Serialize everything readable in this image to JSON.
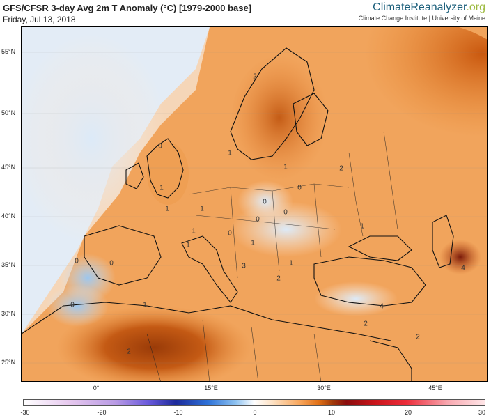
{
  "header": {
    "title": "GFS/CFSR 3-day Avg 2m T Anomaly (°C) [1979-2000 base]",
    "date": "Friday, Jul 13, 2018"
  },
  "brand": {
    "name_part1": "Climate",
    "name_part2": "Reanalyzer",
    "name_part3": ".org",
    "sub": "Climate Change Institute | University of Maine"
  },
  "axes": {
    "lat_ticks": [
      "55°N",
      "50°N",
      "45°N",
      "40°N",
      "35°N",
      "30°N",
      "25°N"
    ],
    "lon_ticks": [
      "0°",
      "15°E",
      "30°E",
      "45°E"
    ]
  },
  "colorbar": {
    "ticks": [
      "-30",
      "-20",
      "-10",
      "0",
      "10",
      "20",
      "30"
    ]
  },
  "map_labels": [
    "2",
    "1",
    "0",
    "1",
    "0",
    "0",
    "2",
    "1",
    "0",
    "1",
    "0",
    "1",
    "0",
    "1",
    "3",
    "2",
    "1",
    "0",
    "1",
    "4",
    "2",
    "0",
    "0",
    "1",
    "1",
    "4",
    "2",
    "1",
    "2"
  ]
}
